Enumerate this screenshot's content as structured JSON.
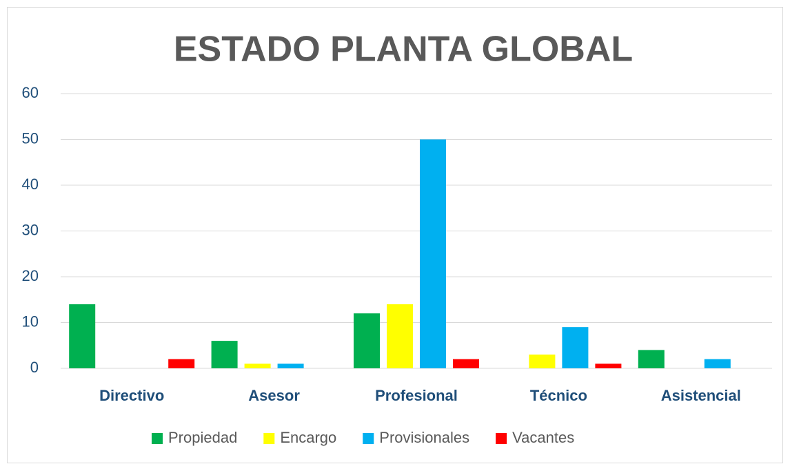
{
  "chart_data": {
    "type": "bar",
    "title": "ESTADO PLANTA GLOBAL",
    "categories": [
      "Directivo",
      "Asesor",
      "Profesional",
      "Técnico",
      "Asistencial"
    ],
    "series": [
      {
        "name": "Propiedad",
        "color": "#00b050",
        "values": [
          14,
          6,
          12,
          0,
          4
        ]
      },
      {
        "name": "Encargo",
        "color": "#ffff00",
        "values": [
          0,
          1,
          14,
          3,
          0
        ]
      },
      {
        "name": "Provisionales",
        "color": "#00b0f0",
        "values": [
          0,
          1,
          50,
          9,
          2
        ]
      },
      {
        "name": "Vacantes",
        "color": "#ff0000",
        "values": [
          2,
          0,
          2,
          1,
          0
        ]
      }
    ],
    "ylim": [
      0,
      60
    ],
    "yticks": [
      0,
      10,
      20,
      30,
      40,
      50,
      60
    ],
    "grid": true,
    "legend": "bottom"
  }
}
